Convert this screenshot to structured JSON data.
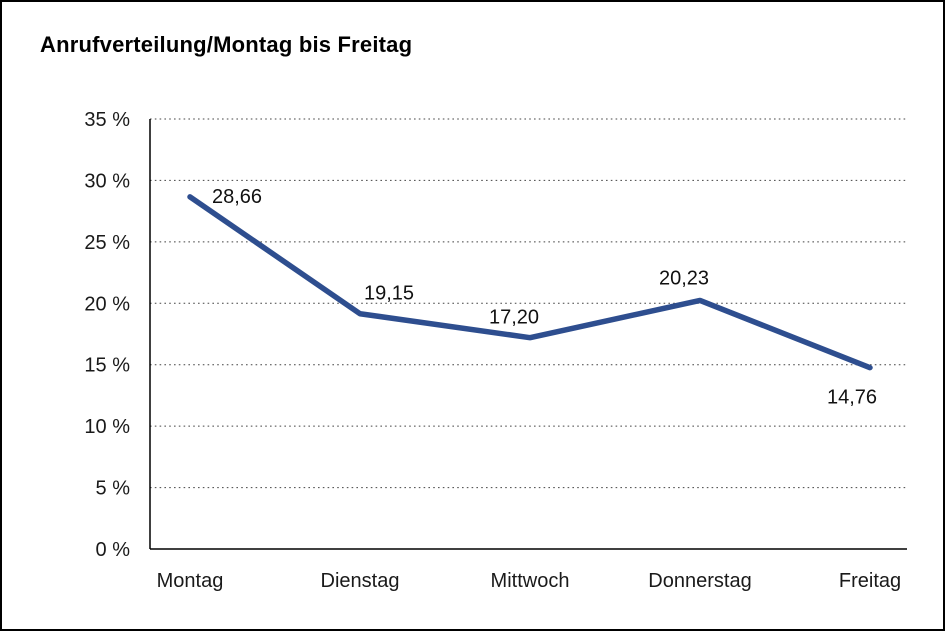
{
  "chart_data": {
    "type": "line",
    "title": "Anrufverteilung/Montag bis Freitag",
    "categories": [
      "Montag",
      "Dienstag",
      "Mittwoch",
      "Donnerstag",
      "Freitag"
    ],
    "values": [
      28.66,
      19.15,
      17.2,
      20.23,
      14.76
    ],
    "value_labels": [
      "28,66",
      "19,15",
      "17,20",
      "20,23",
      "14,76"
    ],
    "yticks": [
      "0 %",
      "5 %",
      "10 %",
      "15 %",
      "20 %",
      "25 %",
      "30 %",
      "35 %"
    ],
    "ylim": [
      0,
      35
    ],
    "ytick_step": 5,
    "grid": "horizontal-dotted",
    "legend": "none",
    "line_color": "#2E4E8F",
    "axis_color": "#000000",
    "label_color": "#1a1a1a"
  }
}
